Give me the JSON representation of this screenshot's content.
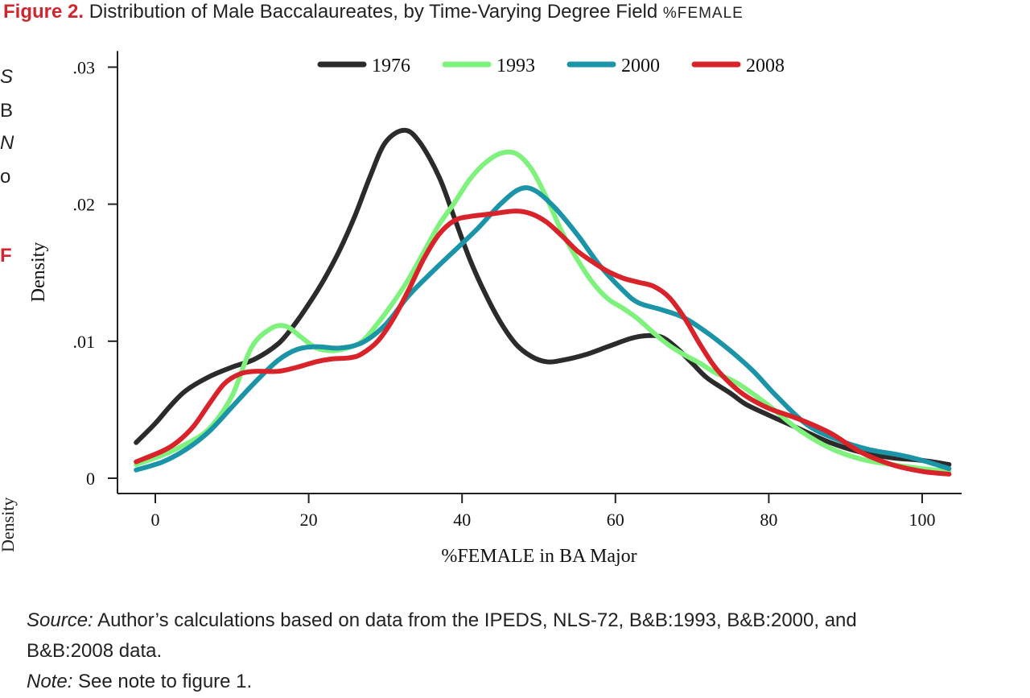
{
  "figure": {
    "label": "Figure 2.",
    "title_main": "Distribution of Male Baccalaureates, by Time-Varying Degree Field ",
    "title_var": "%FEMALE"
  },
  "bleed_text": [
    "S",
    "B",
    "N",
    "o",
    "F",
    "Density"
  ],
  "chart_data": {
    "type": "line",
    "xlabel": "%FEMALE in BA Major",
    "ylabel": "Density",
    "xlim": [
      -5,
      105
    ],
    "ylim": [
      0,
      0.03
    ],
    "xticks": [
      0,
      20,
      40,
      60,
      80,
      100
    ],
    "xtick_labels": [
      "0",
      "20",
      "40",
      "60",
      "80",
      "100"
    ],
    "yticks": [
      0,
      0.01,
      0.02,
      0.03
    ],
    "ytick_labels": [
      "0",
      ".01",
      ".02",
      ".03"
    ],
    "legend_position": "top",
    "series": [
      {
        "name": "1976",
        "color": "#2b2b2b",
        "points": [
          [
            -2.5,
            0.0026
          ],
          [
            0,
            0.004
          ],
          [
            2,
            0.0053
          ],
          [
            4,
            0.0064
          ],
          [
            7,
            0.0074
          ],
          [
            10,
            0.0081
          ],
          [
            13,
            0.0087
          ],
          [
            16,
            0.0098
          ],
          [
            18,
            0.0111
          ],
          [
            20,
            0.0127
          ],
          [
            22,
            0.0145
          ],
          [
            24,
            0.0166
          ],
          [
            26,
            0.0191
          ],
          [
            28,
            0.022
          ],
          [
            30,
            0.0245
          ],
          [
            32.5,
            0.0254
          ],
          [
            34.5,
            0.0245
          ],
          [
            37,
            0.022
          ],
          [
            39,
            0.019
          ],
          [
            41,
            0.016
          ],
          [
            43,
            0.0135
          ],
          [
            45,
            0.0114
          ],
          [
            47,
            0.0098
          ],
          [
            49,
            0.0089
          ],
          [
            51,
            0.0085
          ],
          [
            53,
            0.0086
          ],
          [
            56,
            0.009
          ],
          [
            59,
            0.0096
          ],
          [
            62,
            0.0102
          ],
          [
            64,
            0.0104
          ],
          [
            66,
            0.0103
          ],
          [
            68,
            0.0095
          ],
          [
            70,
            0.0084
          ],
          [
            72,
            0.0073
          ],
          [
            75,
            0.0062
          ],
          [
            77,
            0.0054
          ],
          [
            80,
            0.0046
          ],
          [
            84,
            0.0036
          ],
          [
            88,
            0.0026
          ],
          [
            92,
            0.0019
          ],
          [
            96,
            0.0015
          ],
          [
            100,
            0.0013
          ],
          [
            103.5,
            0.001
          ]
        ]
      },
      {
        "name": "1993",
        "color": "#7ef27c",
        "points": [
          [
            -2.5,
            0.001
          ],
          [
            1,
            0.0017
          ],
          [
            4,
            0.0025
          ],
          [
            7,
            0.0036
          ],
          [
            10,
            0.006
          ],
          [
            12.5,
            0.0095
          ],
          [
            15,
            0.0109
          ],
          [
            17,
            0.0111
          ],
          [
            19,
            0.0103
          ],
          [
            21,
            0.0095
          ],
          [
            23,
            0.0093
          ],
          [
            25,
            0.0095
          ],
          [
            27,
            0.01
          ],
          [
            29,
            0.0113
          ],
          [
            31,
            0.0128
          ],
          [
            33,
            0.0145
          ],
          [
            35,
            0.0165
          ],
          [
            37,
            0.0185
          ],
          [
            39,
            0.0201
          ],
          [
            41,
            0.0218
          ],
          [
            43,
            0.023
          ],
          [
            45,
            0.0237
          ],
          [
            47,
            0.0237
          ],
          [
            49,
            0.0226
          ],
          [
            51,
            0.0205
          ],
          [
            53,
            0.018
          ],
          [
            55,
            0.016
          ],
          [
            57,
            0.0143
          ],
          [
            59,
            0.0131
          ],
          [
            61,
            0.0124
          ],
          [
            63,
            0.0116
          ],
          [
            65,
            0.0106
          ],
          [
            67,
            0.0097
          ],
          [
            69,
            0.009
          ],
          [
            71,
            0.0084
          ],
          [
            73,
            0.0077
          ],
          [
            76,
            0.0069
          ],
          [
            80,
            0.0053
          ],
          [
            84,
            0.0035
          ],
          [
            88,
            0.0022
          ],
          [
            92,
            0.0014
          ],
          [
            96,
            0.001
          ],
          [
            100,
            0.0007
          ],
          [
            103.5,
            0.0005
          ]
        ]
      },
      {
        "name": "2000",
        "color": "#1b94a8",
        "points": [
          [
            -2.5,
            0.0006
          ],
          [
            1,
            0.0012
          ],
          [
            4,
            0.0021
          ],
          [
            7,
            0.0034
          ],
          [
            10,
            0.0052
          ],
          [
            13,
            0.007
          ],
          [
            16,
            0.0086
          ],
          [
            18.5,
            0.0094
          ],
          [
            21,
            0.0096
          ],
          [
            24,
            0.0095
          ],
          [
            27,
            0.0099
          ],
          [
            30,
            0.0112
          ],
          [
            33,
            0.0133
          ],
          [
            36,
            0.015
          ],
          [
            39,
            0.0166
          ],
          [
            42,
            0.0182
          ],
          [
            45,
            0.02
          ],
          [
            47.5,
            0.0211
          ],
          [
            49.5,
            0.021
          ],
          [
            52,
            0.0198
          ],
          [
            55,
            0.0178
          ],
          [
            58,
            0.0155
          ],
          [
            61,
            0.0137
          ],
          [
            63,
            0.0128
          ],
          [
            66,
            0.0123
          ],
          [
            69,
            0.0117
          ],
          [
            72,
            0.0106
          ],
          [
            75,
            0.0093
          ],
          [
            78,
            0.0078
          ],
          [
            81,
            0.006
          ],
          [
            85,
            0.0039
          ],
          [
            89,
            0.0028
          ],
          [
            93,
            0.0021
          ],
          [
            97,
            0.0017
          ],
          [
            100,
            0.0013
          ],
          [
            103.5,
            0.0007
          ]
        ]
      },
      {
        "name": "2008",
        "color": "#d8232a",
        "points": [
          [
            -2.5,
            0.0012
          ],
          [
            1,
            0.002
          ],
          [
            3,
            0.0027
          ],
          [
            5,
            0.0038
          ],
          [
            7,
            0.0054
          ],
          [
            9,
            0.0069
          ],
          [
            11,
            0.0076
          ],
          [
            13,
            0.0078
          ],
          [
            16,
            0.0078
          ],
          [
            18.5,
            0.0081
          ],
          [
            21,
            0.0085
          ],
          [
            23,
            0.0087
          ],
          [
            25.5,
            0.0088
          ],
          [
            27,
            0.0091
          ],
          [
            29,
            0.01
          ],
          [
            31,
            0.0116
          ],
          [
            33,
            0.0137
          ],
          [
            35,
            0.016
          ],
          [
            37,
            0.0178
          ],
          [
            39,
            0.0188
          ],
          [
            41,
            0.0191
          ],
          [
            44,
            0.0193
          ],
          [
            47,
            0.0195
          ],
          [
            49,
            0.0193
          ],
          [
            51,
            0.0187
          ],
          [
            53,
            0.0177
          ],
          [
            55,
            0.0166
          ],
          [
            57,
            0.0158
          ],
          [
            59,
            0.0151
          ],
          [
            61,
            0.0146
          ],
          [
            63,
            0.0143
          ],
          [
            65,
            0.014
          ],
          [
            67,
            0.0132
          ],
          [
            69,
            0.0117
          ],
          [
            71,
            0.0098
          ],
          [
            73,
            0.0081
          ],
          [
            75,
            0.0069
          ],
          [
            77,
            0.006
          ],
          [
            80,
            0.0051
          ],
          [
            84,
            0.0043
          ],
          [
            88,
            0.0033
          ],
          [
            92,
            0.0019
          ],
          [
            96,
            0.001
          ],
          [
            100,
            0.0005
          ],
          [
            103.5,
            0.0003
          ]
        ]
      }
    ]
  },
  "notes": {
    "source_label": "Source:",
    "source_text": " Author’s calculations based on data from the IPEDS, NLS-72, B&B:1993, B&B:2000, and",
    "source_text2": "B&B:2008 data.",
    "note_label": "Note:",
    "note_text": " See note to figure 1."
  }
}
